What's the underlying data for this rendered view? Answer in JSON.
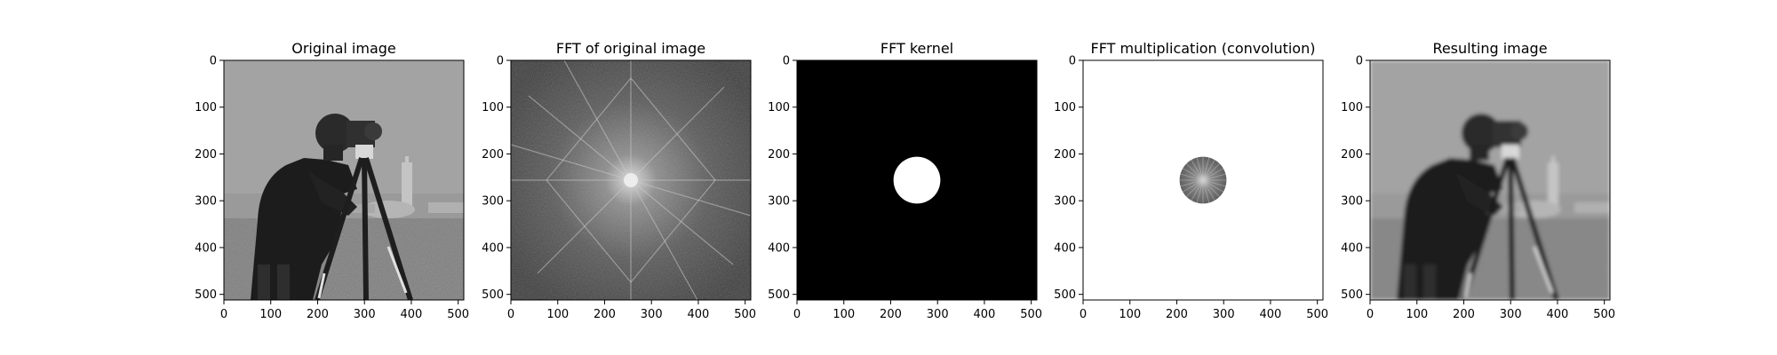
{
  "chart_data": [
    {
      "type": "image",
      "title": "Original image",
      "content": "grayscale photograph",
      "x_ticks": [
        0,
        100,
        200,
        300,
        400,
        500
      ],
      "y_ticks": [
        0,
        100,
        200,
        300,
        400,
        500
      ],
      "xlim": [
        0,
        512
      ],
      "ylim": [
        512,
        0
      ]
    },
    {
      "type": "image",
      "title": "FFT of original image",
      "content": "fft magnitude spectrum",
      "x_ticks": [
        0,
        100,
        200,
        300,
        400,
        500
      ],
      "y_ticks": [
        0,
        100,
        200,
        300,
        400,
        500
      ],
      "xlim": [
        0,
        512
      ],
      "ylim": [
        512,
        0
      ]
    },
    {
      "type": "image",
      "title": "FFT kernel",
      "content": "binary circular mask",
      "background": "#000000",
      "disc_color": "#ffffff",
      "disc_center": [
        256,
        256
      ],
      "disc_radius": 50,
      "x_ticks": [
        0,
        100,
        200,
        300,
        400,
        500
      ],
      "y_ticks": [
        0,
        100,
        200,
        300,
        400,
        500
      ],
      "xlim": [
        0,
        512
      ],
      "ylim": [
        512,
        0
      ]
    },
    {
      "type": "image",
      "title": "FFT multiplication (convolution)",
      "content": "masked spectrum",
      "background": "#ffffff",
      "disc_center": [
        256,
        256
      ],
      "disc_radius": 50,
      "x_ticks": [
        0,
        100,
        200,
        300,
        400,
        500
      ],
      "y_ticks": [
        0,
        100,
        200,
        300,
        400,
        500
      ],
      "xlim": [
        0,
        512
      ],
      "ylim": [
        512,
        0
      ]
    },
    {
      "type": "image",
      "title": "Resulting image",
      "content": "low-pass filtered photograph",
      "x_ticks": [
        0,
        100,
        200,
        300,
        400,
        500
      ],
      "y_ticks": [
        0,
        100,
        200,
        300,
        400,
        500
      ],
      "xlim": [
        0,
        512
      ],
      "ylim": [
        512,
        0
      ]
    }
  ]
}
